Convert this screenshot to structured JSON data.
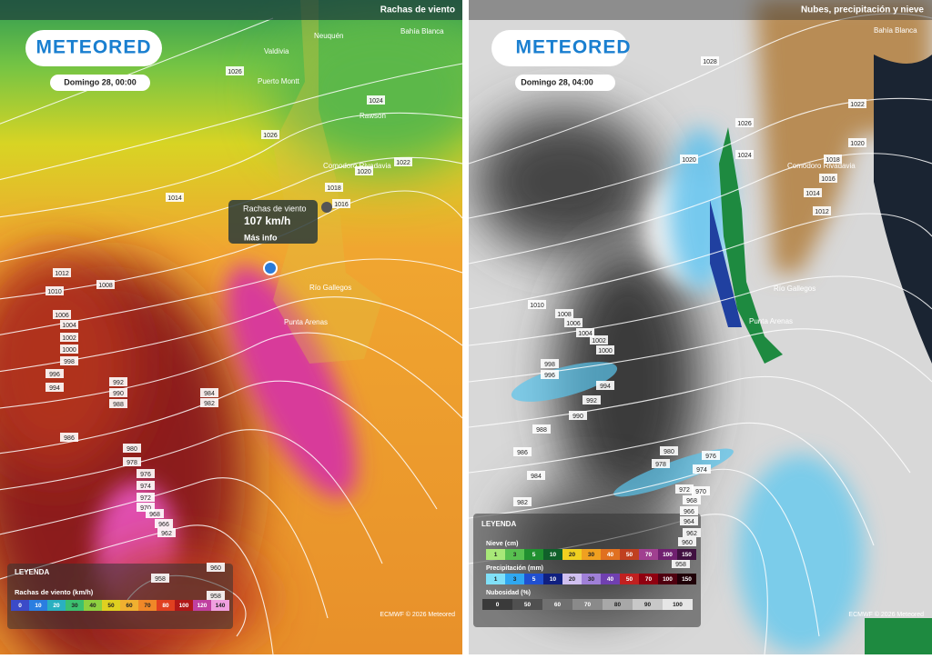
{
  "left_panel": {
    "layer_title": "Rachas de viento",
    "logo": "METEORED",
    "date": "Domingo 28, 00:00",
    "places": [
      "Valdivia",
      "Neuquén",
      "Bahía Blanca",
      "Puerto Montt",
      "Rawson",
      "Comodoro Rivadavia",
      "Río Gallegos",
      "Punta Arenas"
    ],
    "isobars": [
      1026,
      1026,
      1024,
      1022,
      1020,
      1018,
      1016,
      1014,
      1012,
      1010,
      1008,
      1006,
      1004,
      1002,
      1000,
      998,
      996,
      994,
      992,
      990,
      988,
      986,
      984,
      982,
      980,
      978,
      976,
      974,
      972,
      970,
      968,
      966,
      962,
      960,
      958,
      958
    ],
    "popup": {
      "title": "Rachas de viento",
      "value": "107 km/h",
      "link": "Más info"
    },
    "legend": {
      "title": "LEYENDA",
      "subtitle": "Rachas de viento (km/h)",
      "values": [
        0,
        10,
        20,
        30,
        40,
        50,
        60,
        70,
        80,
        100,
        120,
        140
      ]
    },
    "credit": "ECMWF © 2026 Meteored"
  },
  "right_panel": {
    "layer_title": "Nubes, precipitación y nieve",
    "logo": "METEORED",
    "date": "Domingo 28, 04:00",
    "places": [
      "Bahía Blanca",
      "Comodoro Rivadavia",
      "Río Gallegos",
      "Punta Arenas"
    ],
    "isobars": [
      1028,
      1026,
      1024,
      1022,
      1020,
      1020,
      1018,
      1016,
      1014,
      1012,
      1010,
      1008,
      1006,
      1004,
      1002,
      1000,
      998,
      996,
      994,
      992,
      990,
      988,
      986,
      984,
      982,
      980,
      978,
      976,
      974,
      972,
      970,
      968,
      966,
      964,
      962,
      960,
      958
    ],
    "legend": {
      "title": "LEYENDA",
      "snow": {
        "title": "Nieve (cm)",
        "values": [
          1,
          3,
          5,
          10,
          20,
          30,
          40,
          50,
          70,
          100,
          150
        ]
      },
      "rain": {
        "title": "Precipitación (mm)",
        "values": [
          1,
          3,
          5,
          10,
          20,
          30,
          40,
          50,
          70,
          100,
          150
        ]
      },
      "clouds": {
        "title": "Nubosidad (%)",
        "values": [
          0,
          50,
          60,
          70,
          80,
          90,
          100
        ]
      }
    },
    "credit": "ECMWF © 2026 Meteored"
  }
}
